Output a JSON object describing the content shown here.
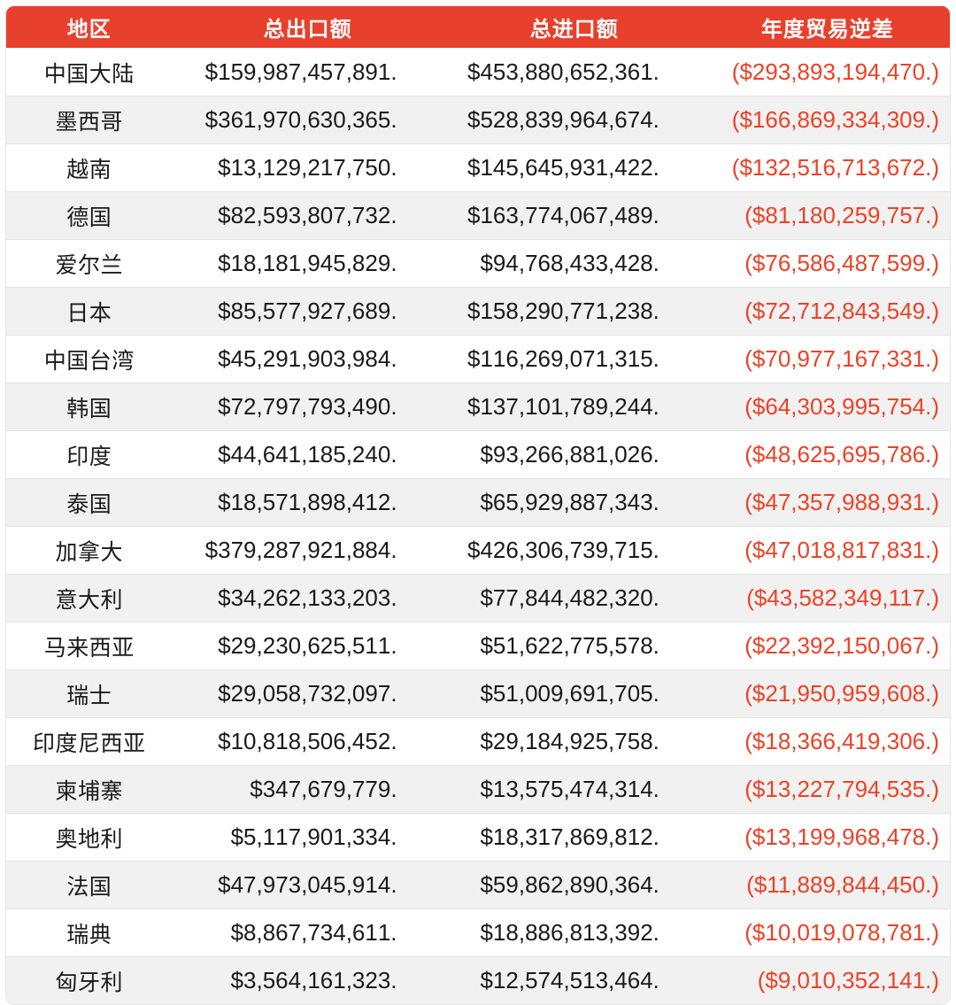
{
  "colors": {
    "header_bg": "#E7402D",
    "header_text": "#FFFFFF",
    "deficit_text": "#ED4126",
    "row_alt_bg": "#F1F1F1"
  },
  "chart_data": {
    "type": "table",
    "columns": [
      "地区",
      "总出口额",
      "总进口额",
      "年度贸易逆差"
    ],
    "rows": [
      [
        "中国大陆",
        "$159,987,457,891.",
        "$453,880,652,361.",
        "($293,893,194,470.)"
      ],
      [
        "墨西哥",
        "$361,970,630,365.",
        "$528,839,964,674.",
        "($166,869,334,309.)"
      ],
      [
        "越南",
        "$13,129,217,750.",
        "$145,645,931,422.",
        "($132,516,713,672.)"
      ],
      [
        "德国",
        "$82,593,807,732.",
        "$163,774,067,489.",
        "($81,180,259,757.)"
      ],
      [
        "爱尔兰",
        "$18,181,945,829.",
        "$94,768,433,428.",
        "($76,586,487,599.)"
      ],
      [
        "日本",
        "$85,577,927,689.",
        "$158,290,771,238.",
        "($72,712,843,549.)"
      ],
      [
        "中国台湾",
        "$45,291,903,984.",
        "$116,269,071,315.",
        "($70,977,167,331.)"
      ],
      [
        "韩国",
        "$72,797,793,490.",
        "$137,101,789,244.",
        "($64,303,995,754.)"
      ],
      [
        "印度",
        "$44,641,185,240.",
        "$93,266,881,026.",
        "($48,625,695,786.)"
      ],
      [
        "泰国",
        "$18,571,898,412.",
        "$65,929,887,343.",
        "($47,357,988,931.)"
      ],
      [
        "加拿大",
        "$379,287,921,884.",
        "$426,306,739,715.",
        "($47,018,817,831.)"
      ],
      [
        "意大利",
        "$34,262,133,203.",
        "$77,844,482,320.",
        "($43,582,349,117.)"
      ],
      [
        "马来西亚",
        "$29,230,625,511.",
        "$51,622,775,578.",
        "($22,392,150,067.)"
      ],
      [
        "瑞士",
        "$29,058,732,097.",
        "$51,009,691,705.",
        "($21,950,959,608.)"
      ],
      [
        "印度尼西亚",
        "$10,818,506,452.",
        "$29,184,925,758.",
        "($18,366,419,306.)"
      ],
      [
        "柬埔寨",
        "$347,679,779.",
        "$13,575,474,314.",
        "($13,227,794,535.)"
      ],
      [
        "奥地利",
        "$5,117,901,334.",
        "$18,317,869,812.",
        "($13,199,968,478.)"
      ],
      [
        "法国",
        "$47,973,045,914.",
        "$59,862,890,364.",
        "($11,889,844,450.)"
      ],
      [
        "瑞典",
        "$8,867,734,611.",
        "$18,886,813,392.",
        "($10,019,078,781.)"
      ],
      [
        "匈牙利",
        "$3,564,161,323.",
        "$12,574,513,464.",
        "($9,010,352,141.)"
      ]
    ]
  }
}
